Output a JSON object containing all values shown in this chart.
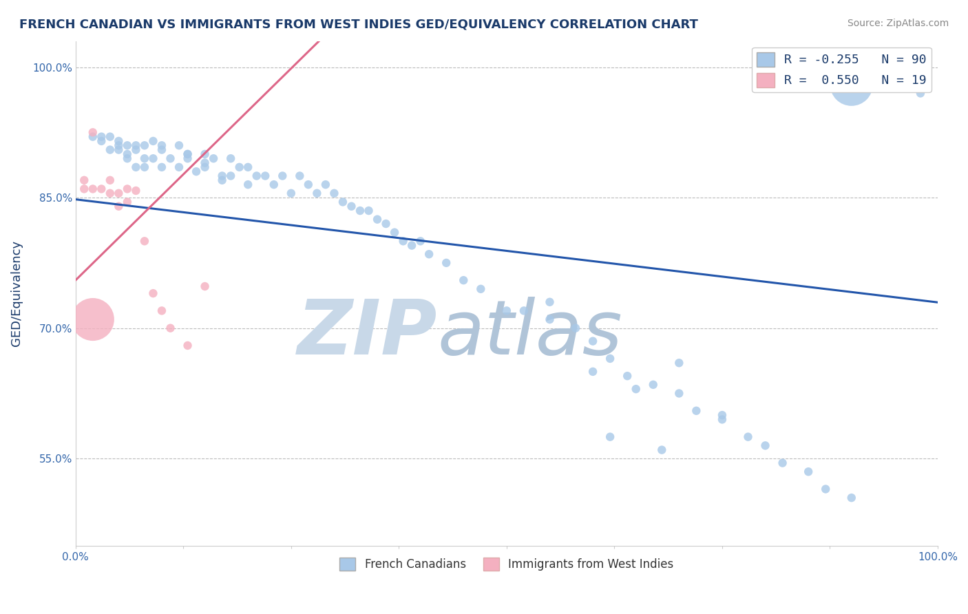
{
  "title": "FRENCH CANADIAN VS IMMIGRANTS FROM WEST INDIES GED/EQUIVALENCY CORRELATION CHART",
  "source": "Source: ZipAtlas.com",
  "ylabel": "GED/Equivalency",
  "xlabel": "",
  "xlim": [
    0.0,
    1.0
  ],
  "ylim": [
    0.45,
    1.03
  ],
  "yticks": [
    0.55,
    0.7,
    0.85,
    1.0
  ],
  "ytick_labels": [
    "55.0%",
    "70.0%",
    "85.0%",
    "100.0%"
  ],
  "xticks": [
    0.0,
    0.125,
    0.25,
    0.375,
    0.5,
    0.625,
    0.75,
    0.875,
    1.0
  ],
  "xtick_labels": [
    "0.0%",
    "",
    "",
    "",
    "",
    "",
    "",
    "",
    "100.0%"
  ],
  "blue_color": "#a8c8e8",
  "blue_line_color": "#2255aa",
  "pink_color": "#f4b0c0",
  "pink_line_color": "#dd6688",
  "R_blue": -0.255,
  "R_pink": 0.55,
  "N_blue": 90,
  "N_pink": 19,
  "blue_scatter_x": [
    0.02,
    0.03,
    0.03,
    0.04,
    0.04,
    0.05,
    0.05,
    0.05,
    0.06,
    0.06,
    0.06,
    0.07,
    0.07,
    0.07,
    0.08,
    0.08,
    0.08,
    0.09,
    0.09,
    0.1,
    0.1,
    0.1,
    0.11,
    0.12,
    0.12,
    0.13,
    0.13,
    0.14,
    0.15,
    0.15,
    0.16,
    0.17,
    0.18,
    0.18,
    0.19,
    0.2,
    0.2,
    0.21,
    0.22,
    0.23,
    0.24,
    0.25,
    0.26,
    0.27,
    0.28,
    0.29,
    0.3,
    0.31,
    0.32,
    0.33,
    0.34,
    0.35,
    0.36,
    0.37,
    0.38,
    0.39,
    0.4,
    0.41,
    0.43,
    0.45,
    0.47,
    0.5,
    0.52,
    0.55,
    0.58,
    0.6,
    0.62,
    0.64,
    0.67,
    0.7,
    0.72,
    0.75,
    0.78,
    0.8,
    0.82,
    0.85,
    0.87,
    0.9,
    0.55,
    0.6,
    0.65,
    0.7,
    0.75,
    0.62,
    0.68,
    0.9,
    0.98,
    0.13,
    0.15,
    0.17
  ],
  "blue_scatter_y": [
    0.92,
    0.915,
    0.92,
    0.905,
    0.92,
    0.91,
    0.905,
    0.915,
    0.91,
    0.9,
    0.895,
    0.91,
    0.905,
    0.885,
    0.91,
    0.895,
    0.885,
    0.895,
    0.915,
    0.905,
    0.885,
    0.91,
    0.895,
    0.885,
    0.91,
    0.9,
    0.895,
    0.88,
    0.9,
    0.885,
    0.895,
    0.875,
    0.895,
    0.875,
    0.885,
    0.885,
    0.865,
    0.875,
    0.875,
    0.865,
    0.875,
    0.855,
    0.875,
    0.865,
    0.855,
    0.865,
    0.855,
    0.845,
    0.84,
    0.835,
    0.835,
    0.825,
    0.82,
    0.81,
    0.8,
    0.795,
    0.8,
    0.785,
    0.775,
    0.755,
    0.745,
    0.72,
    0.72,
    0.71,
    0.7,
    0.685,
    0.665,
    0.645,
    0.635,
    0.625,
    0.605,
    0.595,
    0.575,
    0.565,
    0.545,
    0.535,
    0.515,
    0.505,
    0.73,
    0.65,
    0.63,
    0.66,
    0.6,
    0.575,
    0.56,
    0.98,
    0.97,
    0.9,
    0.89,
    0.87
  ],
  "blue_sizes": [
    80,
    80,
    80,
    80,
    80,
    80,
    80,
    80,
    80,
    80,
    80,
    80,
    80,
    80,
    80,
    80,
    80,
    80,
    80,
    80,
    80,
    80,
    80,
    80,
    80,
    80,
    80,
    80,
    80,
    80,
    80,
    80,
    80,
    80,
    80,
    80,
    80,
    80,
    80,
    80,
    80,
    80,
    80,
    80,
    80,
    80,
    80,
    80,
    80,
    80,
    80,
    80,
    80,
    80,
    80,
    80,
    80,
    80,
    80,
    80,
    80,
    80,
    80,
    80,
    80,
    80,
    80,
    80,
    80,
    80,
    80,
    80,
    80,
    80,
    80,
    80,
    80,
    80,
    80,
    80,
    80,
    80,
    80,
    80,
    80,
    2000,
    80,
    80,
    80,
    80
  ],
  "pink_scatter_x": [
    0.01,
    0.01,
    0.02,
    0.02,
    0.03,
    0.04,
    0.04,
    0.05,
    0.05,
    0.06,
    0.06,
    0.07,
    0.08,
    0.09,
    0.1,
    0.11,
    0.13,
    0.15,
    0.02
  ],
  "pink_scatter_y": [
    0.86,
    0.87,
    0.86,
    0.925,
    0.86,
    0.87,
    0.855,
    0.855,
    0.84,
    0.86,
    0.845,
    0.858,
    0.8,
    0.74,
    0.72,
    0.7,
    0.68,
    0.748,
    0.71
  ],
  "pink_sizes": [
    80,
    80,
    80,
    80,
    80,
    80,
    80,
    80,
    80,
    80,
    80,
    80,
    80,
    80,
    80,
    80,
    80,
    80,
    2000
  ],
  "watermark_left": "ZIP",
  "watermark_right": "atlas",
  "watermark_color_left": "#c8d8e8",
  "watermark_color_right": "#b0c4d8",
  "background_color": "#ffffff",
  "grid_color": "#bbbbbb",
  "title_color": "#1a3a6a",
  "axis_label_color": "#1a3a6a",
  "tick_color": "#3366aa",
  "source_color": "#888888",
  "legend_text_color": "#1a3a6a",
  "legend_r_color": "#cc0000",
  "legend_n_color": "#3366aa"
}
